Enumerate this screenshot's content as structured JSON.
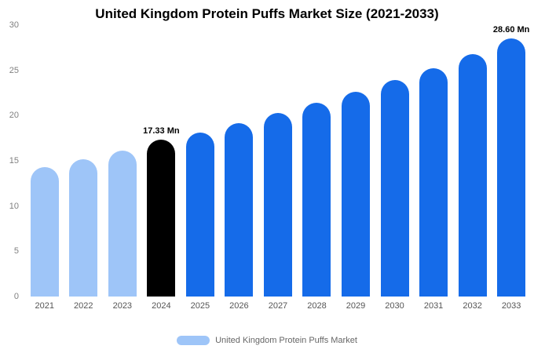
{
  "chart_data": {
    "type": "bar",
    "title": "United Kingdom Protein Puffs Market Size (2021-2033)",
    "categories": [
      "2021",
      "2022",
      "2023",
      "2024",
      "2025",
      "2026",
      "2027",
      "2028",
      "2029",
      "2030",
      "2031",
      "2032",
      "2033"
    ],
    "values": [
      14.3,
      15.2,
      16.1,
      17.33,
      18.1,
      19.15,
      20.25,
      21.4,
      22.6,
      23.9,
      25.25,
      26.8,
      28.6
    ],
    "point_labels": [
      "",
      "",
      "",
      "17.33 Mn",
      "",
      "",
      "",
      "",
      "",
      "",
      "",
      "",
      "28.60 Mn"
    ],
    "bar_colors": [
      "#9EC5F8",
      "#9EC5F8",
      "#9EC5F8",
      "#000000",
      "#156BE9",
      "#156BE9",
      "#156BE9",
      "#156BE9",
      "#156BE9",
      "#156BE9",
      "#156BE9",
      "#156BE9",
      "#156BE9"
    ],
    "xlabel": "",
    "ylabel": "",
    "ylim": [
      0,
      30
    ],
    "yticks": [
      0,
      5,
      10,
      15,
      20,
      25,
      30
    ],
    "grid": false,
    "legend_position": "bottom"
  },
  "legend": {
    "label": "United Kingdom Protein Puffs Market",
    "swatch_color": "#9EC5F8"
  },
  "colors": {
    "light_blue": "#9EC5F8",
    "highlight_black": "#000000",
    "blue": "#156BE9",
    "axis_text": "#808080",
    "x_text": "#555555"
  }
}
